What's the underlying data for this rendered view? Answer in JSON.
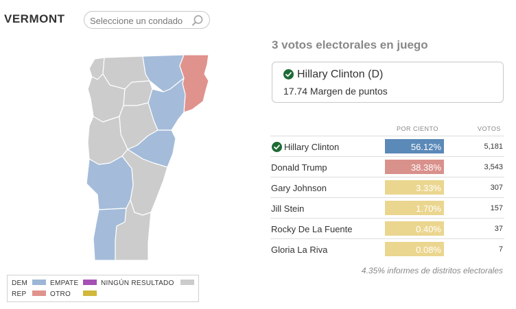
{
  "header": {
    "state": "VERMONT",
    "search_placeholder": "Seleccione un condado",
    "search_icon": "search-icon"
  },
  "summary": {
    "electoral_votes_text": "3 votos electorales en juego",
    "winner_name": "Hillary Clinton (D)",
    "winner_margin": "17.74 Margen de puntos"
  },
  "table": {
    "col_percent": "POR CIENTO",
    "col_votes": "VOTOS",
    "rows": [
      {
        "name": "Hillary Clinton",
        "percent": "56.12%",
        "votes": "5,181",
        "color": "#5b89b8",
        "winner": true
      },
      {
        "name": "Donald Trump",
        "percent": "38.38%",
        "votes": "3,543",
        "color": "#d9918c",
        "winner": false
      },
      {
        "name": "Gary Johnson",
        "percent": "3.33%",
        "votes": "307",
        "color": "#ebd68f",
        "winner": false
      },
      {
        "name": "Jill Stein",
        "percent": "1.70%",
        "votes": "157",
        "color": "#ebd68f",
        "winner": false
      },
      {
        "name": "Rocky De La Fuente",
        "percent": "0.40%",
        "votes": "37",
        "color": "#ebd68f",
        "winner": false
      },
      {
        "name": "Gloria La Riva",
        "percent": "0.08%",
        "votes": "7",
        "color": "#ebd68f",
        "winner": false
      }
    ]
  },
  "footnote": "4.35% informes de distritos electorales",
  "legend": {
    "dem": "DEM",
    "rep": "REP",
    "tie": "EMPATE",
    "other": "OTRO",
    "no_result": "NINGÚN RESULTADO",
    "colors": {
      "dem": "#9cb6d6",
      "rep": "#e0928d",
      "tie": "#a550b4",
      "other": "#d1b73a",
      "no_result": "#cccccc"
    }
  },
  "colors": {
    "dem_map": "#a4bcd9",
    "rep_map": "#e0928d",
    "no_result_map": "#cccccc",
    "check_green": "#1e6b35"
  }
}
